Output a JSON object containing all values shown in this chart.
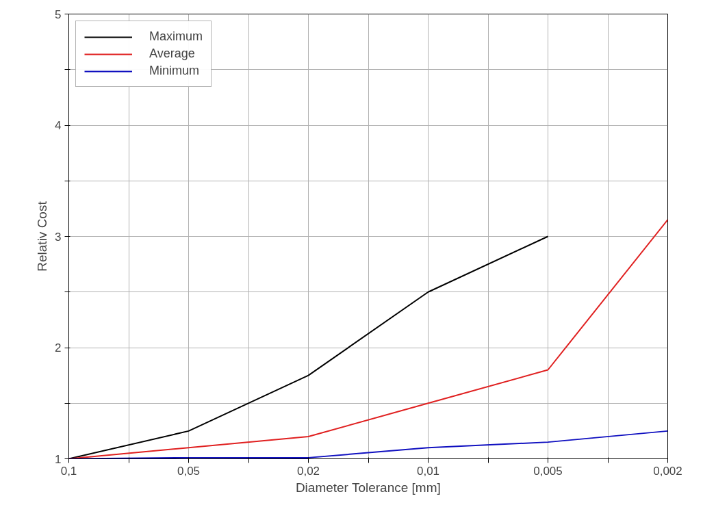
{
  "chart_data": {
    "type": "line",
    "xlabel": "Diameter Tolerance [mm]",
    "ylabel": "Relativ Cost",
    "categories": [
      "0,1",
      "0,05",
      "0,02",
      "0,01",
      "0,005",
      "0,002"
    ],
    "ylim": [
      1,
      5
    ],
    "yticks": [
      1,
      {
        "value": 1.5,
        "label": null
      },
      2,
      {
        "value": 2.5,
        "label": null
      },
      3,
      {
        "value": 3.5,
        "label": null
      },
      4,
      {
        "value": 4.5,
        "label": null
      },
      5
    ],
    "series": [
      {
        "name": "Maximum",
        "color": "#000000",
        "values": [
          1,
          1.25,
          1.75,
          2.5,
          3,
          null
        ]
      },
      {
        "name": "Average",
        "color": "#e02020",
        "values": [
          1,
          1.1,
          1.2,
          1.5,
          1.8,
          3.15
        ]
      },
      {
        "name": "Minimum",
        "color": "#1010c0",
        "values": [
          1,
          1.01,
          1.01,
          1.1,
          1.15,
          1.25
        ]
      }
    ],
    "grid": true,
    "legend": "top left",
    "marker": "none",
    "line_style": "solid"
  }
}
